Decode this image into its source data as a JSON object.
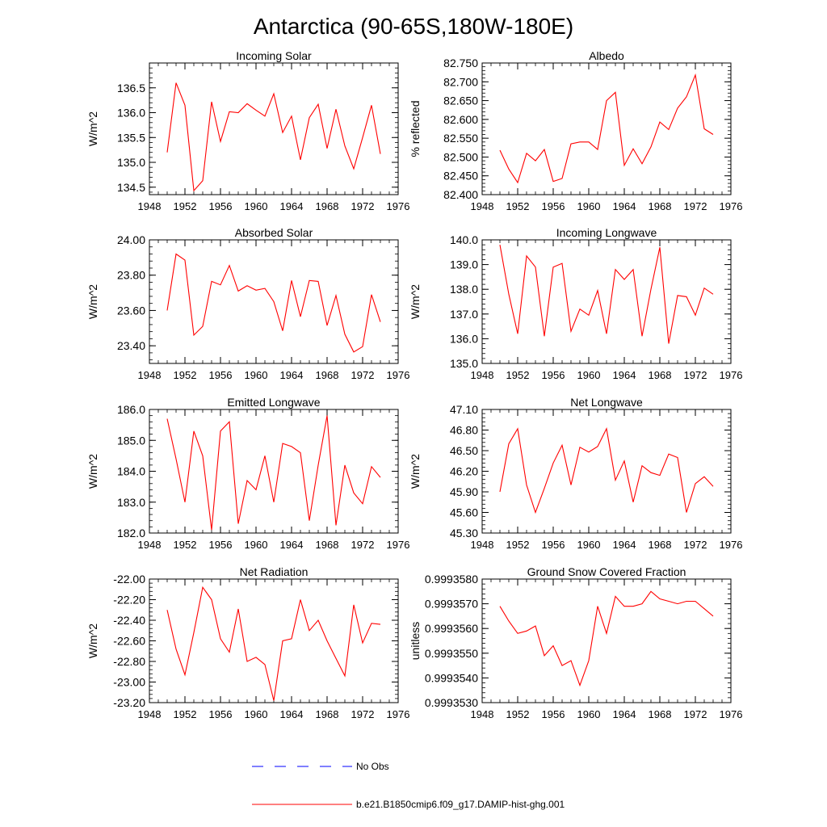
{
  "figure": {
    "title": "Antarctica (90-65S,180W-180E)",
    "legend": {
      "obs_label": "No Obs",
      "model_label": "b.e21.B1850cmip6.f09_g17.DAMIP-hist-ghg.001"
    },
    "colors": {
      "model": "#ff0000",
      "obs": "#0000ff",
      "axis": "#000000"
    }
  },
  "chart_data": [
    {
      "type": "line",
      "title": "Incoming Solar",
      "xlabel": "",
      "ylabel": "W/m^2",
      "xlim": [
        1948,
        1976
      ],
      "ylim": [
        134.35,
        137.0
      ],
      "xticks": [
        "1948",
        "1952",
        "1956",
        "1960",
        "1964",
        "1968",
        "1972",
        "1976"
      ],
      "yticks": [
        "134.5",
        "135.0",
        "135.5",
        "136.0",
        "136.5"
      ],
      "series": [
        {
          "x": [
            1950,
            1951,
            1952,
            1953,
            1954,
            1955,
            1956,
            1957,
            1958,
            1959,
            1960,
            1961,
            1962,
            1963,
            1964,
            1965,
            1966,
            1967,
            1968,
            1969,
            1970,
            1971,
            1972,
            1973,
            1974
          ],
          "values": [
            135.2,
            136.6,
            136.15,
            134.43,
            134.63,
            136.22,
            135.42,
            136.02,
            136.0,
            136.18,
            136.05,
            135.93,
            136.38,
            135.6,
            135.93,
            135.05,
            135.9,
            136.17,
            135.28,
            136.07,
            135.33,
            134.87,
            135.5,
            136.15,
            135.17
          ]
        }
      ]
    },
    {
      "type": "line",
      "title": "Albedo",
      "xlabel": "",
      "ylabel": "% reflected",
      "xlim": [
        1948,
        1976
      ],
      "ylim": [
        82.4,
        82.75
      ],
      "xticks": [
        "1948",
        "1952",
        "1956",
        "1960",
        "1964",
        "1968",
        "1972",
        "1976"
      ],
      "yticks": [
        "82.400",
        "82.450",
        "82.500",
        "82.550",
        "82.600",
        "82.650",
        "82.700",
        "82.750"
      ],
      "series": [
        {
          "x": [
            1950,
            1951,
            1952,
            1953,
            1954,
            1955,
            1956,
            1957,
            1958,
            1959,
            1960,
            1961,
            1962,
            1963,
            1964,
            1965,
            1966,
            1967,
            1968,
            1969,
            1970,
            1971,
            1972,
            1973,
            1974
          ],
          "values": [
            82.518,
            82.468,
            82.432,
            82.51,
            82.49,
            82.52,
            82.435,
            82.443,
            82.535,
            82.54,
            82.54,
            82.52,
            82.65,
            82.672,
            82.478,
            82.522,
            82.482,
            82.527,
            82.593,
            82.573,
            82.63,
            82.66,
            82.718,
            82.575,
            82.56
          ]
        }
      ]
    },
    {
      "type": "line",
      "title": "Absorbed Solar",
      "xlabel": "",
      "ylabel": "W/m^2",
      "xlim": [
        1948,
        1976
      ],
      "ylim": [
        23.3,
        24.0
      ],
      "xticks": [
        "1948",
        "1952",
        "1956",
        "1960",
        "1964",
        "1968",
        "1972",
        "1976"
      ],
      "yticks": [
        "23.40",
        "23.60",
        "23.80",
        "24.00"
      ],
      "series": [
        {
          "x": [
            1950,
            1951,
            1952,
            1953,
            1954,
            1955,
            1956,
            1957,
            1958,
            1959,
            1960,
            1961,
            1962,
            1963,
            1964,
            1965,
            1966,
            1967,
            1968,
            1969,
            1970,
            1971,
            1972,
            1973,
            1974
          ],
          "values": [
            23.6,
            23.92,
            23.885,
            23.46,
            23.51,
            23.765,
            23.745,
            23.855,
            23.71,
            23.74,
            23.715,
            23.725,
            23.65,
            23.485,
            23.77,
            23.565,
            23.77,
            23.765,
            23.515,
            23.685,
            23.465,
            23.365,
            23.395,
            23.69,
            23.535
          ]
        }
      ]
    },
    {
      "type": "line",
      "title": "Incoming Longwave",
      "xlabel": "",
      "ylabel": "W/m^2",
      "xlim": [
        1948,
        1976
      ],
      "ylim": [
        135.0,
        140.0
      ],
      "xticks": [
        "1948",
        "1952",
        "1956",
        "1960",
        "1964",
        "1968",
        "1972",
        "1976"
      ],
      "yticks": [
        "135.0",
        "136.0",
        "137.0",
        "138.0",
        "139.0",
        "140.0"
      ],
      "series": [
        {
          "x": [
            1950,
            1951,
            1952,
            1953,
            1954,
            1955,
            1956,
            1957,
            1958,
            1959,
            1960,
            1961,
            1962,
            1963,
            1964,
            1965,
            1966,
            1967,
            1968,
            1969,
            1970,
            1971,
            1972,
            1973,
            1974
          ],
          "values": [
            139.8,
            137.8,
            136.2,
            139.35,
            138.9,
            136.1,
            138.9,
            139.05,
            136.3,
            137.2,
            136.95,
            137.95,
            136.2,
            138.8,
            138.4,
            138.8,
            136.1,
            138.0,
            139.7,
            135.8,
            137.75,
            137.7,
            136.95,
            138.05,
            137.8
          ]
        }
      ]
    },
    {
      "type": "line",
      "title": "Emitted Longwave",
      "xlabel": "",
      "ylabel": "W/m^2",
      "xlim": [
        1948,
        1976
      ],
      "ylim": [
        182.0,
        186.0
      ],
      "xticks": [
        "1948",
        "1952",
        "1956",
        "1960",
        "1964",
        "1968",
        "1972",
        "1976"
      ],
      "yticks": [
        "182.0",
        "183.0",
        "184.0",
        "185.0",
        "186.0"
      ],
      "series": [
        {
          "x": [
            1950,
            1951,
            1952,
            1953,
            1954,
            1955,
            1956,
            1957,
            1958,
            1959,
            1960,
            1961,
            1962,
            1963,
            1964,
            1965,
            1966,
            1967,
            1968,
            1969,
            1970,
            1971,
            1972,
            1973,
            1974
          ],
          "values": [
            185.7,
            184.4,
            183.0,
            185.3,
            184.5,
            182.1,
            185.3,
            185.6,
            182.3,
            183.7,
            183.4,
            184.5,
            183.0,
            184.9,
            184.8,
            184.6,
            182.4,
            184.2,
            185.8,
            182.25,
            184.2,
            183.3,
            182.95,
            184.15,
            183.8
          ]
        }
      ]
    },
    {
      "type": "line",
      "title": "Net Longwave",
      "xlabel": "",
      "ylabel": "W/m^2",
      "xlim": [
        1948,
        1976
      ],
      "ylim": [
        45.3,
        47.1
      ],
      "xticks": [
        "1948",
        "1952",
        "1956",
        "1960",
        "1964",
        "1968",
        "1972",
        "1976"
      ],
      "yticks": [
        "45.30",
        "45.60",
        "45.90",
        "46.20",
        "46.50",
        "46.80",
        "47.10"
      ],
      "series": [
        {
          "x": [
            1950,
            1951,
            1952,
            1953,
            1954,
            1955,
            1956,
            1957,
            1958,
            1959,
            1960,
            1961,
            1962,
            1963,
            1964,
            1965,
            1966,
            1967,
            1968,
            1969,
            1970,
            1971,
            1972,
            1973,
            1974
          ],
          "values": [
            45.9,
            46.6,
            46.82,
            46.0,
            45.6,
            45.95,
            46.32,
            46.58,
            46.0,
            46.55,
            46.48,
            46.56,
            46.82,
            46.07,
            46.35,
            45.75,
            46.28,
            46.18,
            46.14,
            46.45,
            46.4,
            45.6,
            46.02,
            46.12,
            45.98
          ]
        }
      ]
    },
    {
      "type": "line",
      "title": "Net Radiation",
      "xlabel": "",
      "ylabel": "W/m^2",
      "xlim": [
        1948,
        1976
      ],
      "ylim": [
        -23.2,
        -22.0
      ],
      "xticks": [
        "1948",
        "1952",
        "1956",
        "1960",
        "1964",
        "1968",
        "1972",
        "1976"
      ],
      "yticks": [
        "-23.20",
        "-23.00",
        "-22.80",
        "-22.60",
        "-22.40",
        "-22.20",
        "-22.00"
      ],
      "series": [
        {
          "x": [
            1950,
            1951,
            1952,
            1953,
            1954,
            1955,
            1956,
            1957,
            1958,
            1959,
            1960,
            1961,
            1962,
            1963,
            1964,
            1965,
            1966,
            1967,
            1968,
            1969,
            1970,
            1971,
            1972,
            1973,
            1974
          ],
          "values": [
            -22.3,
            -22.68,
            -22.93,
            -22.52,
            -22.08,
            -22.2,
            -22.58,
            -22.71,
            -22.29,
            -22.8,
            -22.76,
            -22.83,
            -23.18,
            -22.6,
            -22.58,
            -22.2,
            -22.5,
            -22.4,
            -22.6,
            -22.77,
            -22.94,
            -22.25,
            -22.62,
            -22.43,
            -22.44
          ]
        }
      ]
    },
    {
      "type": "line",
      "title": "Ground Snow Covered Fraction",
      "xlabel": "",
      "ylabel": "unitless",
      "xlim": [
        1948,
        1976
      ],
      "ylim": [
        0.999353,
        0.999358
      ],
      "xticks": [
        "1948",
        "1952",
        "1956",
        "1960",
        "1964",
        "1968",
        "1972",
        "1976"
      ],
      "yticks": [
        "0.9993530",
        "0.9993540",
        "0.9993550",
        "0.9993560",
        "0.9993570",
        "0.9993580"
      ],
      "series": [
        {
          "x": [
            1950,
            1951,
            1952,
            1953,
            1954,
            1955,
            1956,
            1957,
            1958,
            1959,
            1960,
            1961,
            1962,
            1963,
            1964,
            1965,
            1966,
            1967,
            1968,
            1969,
            1970,
            1971,
            1972,
            1973,
            1974
          ],
          "values": [
            0.9993569,
            0.9993563,
            0.9993558,
            0.9993559,
            0.9993561,
            0.9993549,
            0.9993553,
            0.9993545,
            0.9993547,
            0.9993537,
            0.9993547,
            0.9993569,
            0.9993558,
            0.9993573,
            0.9993569,
            0.9993569,
            0.999357,
            0.9993575,
            0.9993572,
            0.9993571,
            0.999357,
            0.9993571,
            0.9993571,
            0.9993568,
            0.9993565
          ]
        }
      ]
    }
  ]
}
